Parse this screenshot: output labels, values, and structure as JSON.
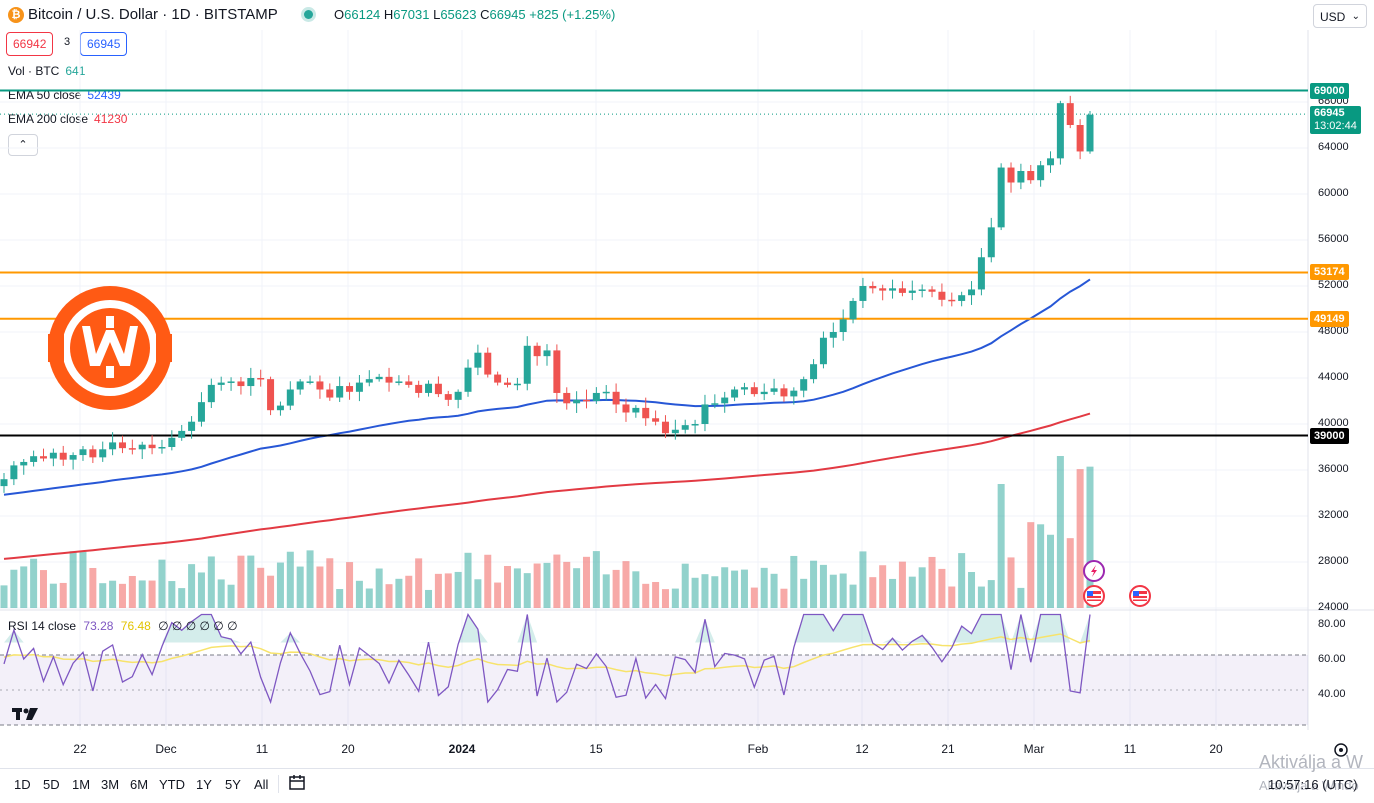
{
  "header": {
    "symbol_icon": "bitcoin-icon",
    "title": "Bitcoin / U.S. Dollar · 1D · BITSTAMP",
    "ohlc": {
      "o_label": "O",
      "o": "66124",
      "h_label": "H",
      "h": "67031",
      "l_label": "L",
      "l": "65623",
      "c_label": "C",
      "c": "66945",
      "change": "+825 (+1.25%)"
    },
    "sell_price": "66942",
    "spread": "3",
    "buy_price": "66945",
    "currency": "USD"
  },
  "legend": {
    "volume_label": "Vol · BTC",
    "volume_value": "641",
    "ema50_label": "EMA 50 close",
    "ema50_value": "52439",
    "ema200_label": "EMA 200 close",
    "ema200_value": "41230"
  },
  "price_axis": {
    "ticks": [
      "68000",
      "64000",
      "60000",
      "56000",
      "52000",
      "48000",
      "44000",
      "40000",
      "36000",
      "32000",
      "28000",
      "24000"
    ],
    "lines": [
      {
        "label": "69000",
        "color": "#089981"
      },
      {
        "label": "53174",
        "color": "#ff9800"
      },
      {
        "label": "49149",
        "color": "#ff9800"
      },
      {
        "label": "39000",
        "color": "#000000"
      }
    ],
    "last_price": "66945",
    "countdown": "13:02:44"
  },
  "rsi": {
    "label": "RSI 14 close",
    "value": "73.28",
    "ma_value": "76.48",
    "zeros": "∅ ∅ ∅ ∅ ∅ ∅",
    "ticks": [
      "80.00",
      "60.00",
      "40.00"
    ]
  },
  "time_axis": {
    "ticks": [
      "22",
      "Dec",
      "11",
      "20",
      "2024",
      "15",
      "Feb",
      "12",
      "21",
      "Mar",
      "11",
      "20"
    ]
  },
  "bottom": {
    "ranges": [
      "1D",
      "5D",
      "1M",
      "3M",
      "6M",
      "YTD",
      "1Y",
      "5Y",
      "All"
    ],
    "clock": "10:57:16 (UTC)",
    "watermark": "Aktiválja a W",
    "watermark2": "Aktiválja a Windo"
  },
  "chart_data": {
    "type": "candlestick",
    "ylim": [
      23000,
      70000
    ],
    "candles_close_approx": [
      35200,
      36400,
      36700,
      37200,
      37000,
      37500,
      36900,
      37300,
      37800,
      37100,
      37800,
      38400,
      37900,
      37800,
      38200,
      37900,
      38000,
      38800,
      39400,
      40200,
      41900,
      43400,
      43600,
      43700,
      43300,
      44000,
      43900,
      41200,
      41600,
      43000,
      43700,
      43700,
      43000,
      42300,
      43300,
      42800,
      43600,
      43900,
      44100,
      43600,
      43700,
      43400,
      42700,
      43500,
      42600,
      42100,
      42800,
      44900,
      46200,
      44300,
      43600,
      43400,
      43500,
      46800,
      45900,
      46400,
      42700,
      41800,
      42100,
      42000,
      42700,
      42800,
      41700,
      41000,
      41400,
      40500,
      40200,
      39200,
      39500,
      39900,
      40000,
      41700,
      41800,
      42300,
      43000,
      43200,
      42600,
      42800,
      43100,
      42400,
      42900,
      43900,
      45200,
      47500,
      48000,
      49100,
      50700,
      52000,
      51800,
      51600,
      51800,
      51400,
      51600,
      51700,
      51500,
      50800,
      50700,
      51200,
      51700,
      54500,
      57100,
      62300,
      61000,
      62000,
      61200,
      62500,
      63100,
      67900,
      66000,
      63700,
      66900
    ]
  }
}
